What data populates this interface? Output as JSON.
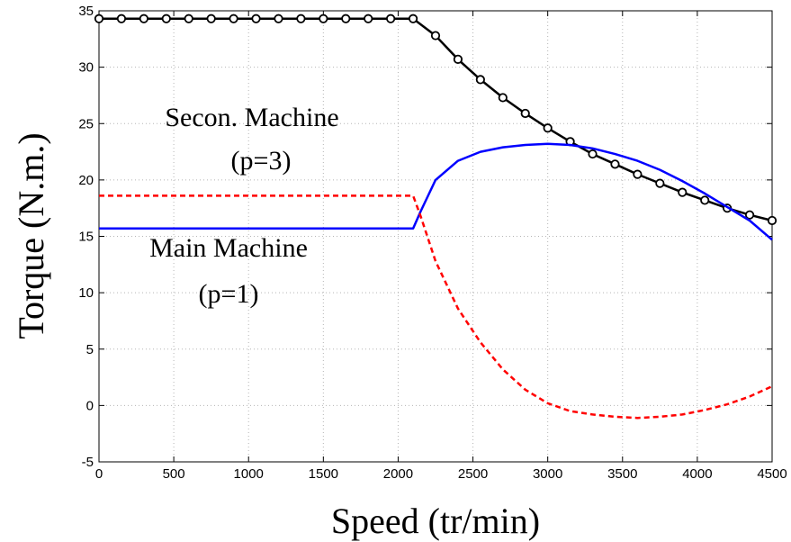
{
  "chart_data": {
    "type": "line",
    "title": "",
    "xlabel": "Speed (tr/min)",
    "ylabel": "Torque (N.m.)",
    "xlim": [
      0,
      4500
    ],
    "ylim": [
      -5,
      35
    ],
    "xticks": [
      0,
      500,
      1000,
      1500,
      2000,
      2500,
      3000,
      3500,
      4000,
      4500
    ],
    "yticks": [
      -5,
      0,
      5,
      10,
      15,
      20,
      25,
      30,
      35
    ],
    "grid": true,
    "series": [
      {
        "color": "#000000",
        "style": "solid",
        "marker": "circle",
        "x": [
          0,
          150,
          300,
          450,
          600,
          750,
          900,
          1050,
          1200,
          1350,
          1500,
          1650,
          1800,
          1950,
          2100,
          2250,
          2400,
          2550,
          2700,
          2850,
          3000,
          3150,
          3300,
          3450,
          3600,
          3750,
          3900,
          4050,
          4200,
          4350,
          4500
        ],
        "y": [
          34.3,
          34.3,
          34.3,
          34.3,
          34.3,
          34.3,
          34.3,
          34.3,
          34.3,
          34.3,
          34.3,
          34.3,
          34.3,
          34.3,
          34.3,
          32.8,
          30.7,
          28.9,
          27.3,
          25.9,
          24.6,
          23.4,
          22.3,
          21.4,
          20.5,
          19.7,
          18.9,
          18.2,
          17.5,
          16.9,
          16.4
        ]
      },
      {
        "color": "#0000ff",
        "style": "solid",
        "x": [
          0,
          2100,
          2150,
          2250,
          2400,
          2550,
          2700,
          2850,
          3000,
          3150,
          3300,
          3450,
          3600,
          3750,
          3900,
          4050,
          4200,
          4350,
          4500
        ],
        "y": [
          15.7,
          15.7,
          17.2,
          20.0,
          21.7,
          22.5,
          22.9,
          23.1,
          23.2,
          23.1,
          22.8,
          22.3,
          21.7,
          20.9,
          19.9,
          18.8,
          17.6,
          16.4,
          14.7
        ]
      },
      {
        "color": "#ff0000",
        "style": "dashed",
        "x": [
          0,
          2100,
          2150,
          2250,
          2400,
          2550,
          2700,
          2850,
          3000,
          3150,
          3300,
          3450,
          3600,
          3750,
          3900,
          4050,
          4200,
          4350,
          4500
        ],
        "y": [
          18.6,
          18.6,
          16.8,
          12.8,
          8.6,
          5.6,
          3.2,
          1.4,
          0.2,
          -0.5,
          -0.8,
          -1.0,
          -1.1,
          -1.0,
          -0.8,
          -0.4,
          0.1,
          0.8,
          1.7
        ]
      }
    ],
    "annotations": [
      {
        "text": "Secon. Machine",
        "color": "#ff0000"
      },
      {
        "text": "(p=3)",
        "color": "#ff0000"
      },
      {
        "text": "Main Machine",
        "color": "#0000ff"
      },
      {
        "text": "(p=1)",
        "color": "#0000ff"
      }
    ]
  }
}
